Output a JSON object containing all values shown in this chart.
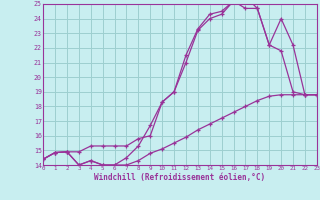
{
  "bg_color": "#c8eef0",
  "grid_color": "#9dcfcf",
  "line_color": "#993399",
  "marker": "+",
  "xlim": [
    0,
    23
  ],
  "ylim": [
    14,
    25
  ],
  "xticks": [
    0,
    1,
    2,
    3,
    4,
    5,
    6,
    7,
    8,
    9,
    10,
    11,
    12,
    13,
    14,
    15,
    16,
    17,
    18,
    19,
    20,
    21,
    22,
    23
  ],
  "yticks": [
    14,
    15,
    16,
    17,
    18,
    19,
    20,
    21,
    22,
    23,
    24,
    25
  ],
  "xlabel": "Windchill (Refroidissement éolien,°C)",
  "curve1_x": [
    0,
    1,
    2,
    3,
    4,
    5,
    6,
    7,
    8,
    9,
    10,
    11,
    12,
    13,
    14,
    15,
    16,
    17,
    18,
    19,
    20,
    21,
    22,
    23
  ],
  "curve1_y": [
    14.4,
    14.85,
    14.9,
    14.0,
    14.3,
    14.0,
    14.0,
    14.0,
    14.3,
    14.8,
    15.1,
    15.5,
    15.9,
    16.4,
    16.8,
    17.2,
    17.6,
    18.0,
    18.4,
    18.7,
    18.8,
    18.8,
    18.8,
    18.8
  ],
  "curve2_x": [
    0,
    1,
    2,
    3,
    4,
    5,
    6,
    7,
    8,
    9,
    10,
    11,
    12,
    13,
    14,
    15,
    16,
    17,
    18,
    19,
    20,
    21,
    22,
    23
  ],
  "curve2_y": [
    14.4,
    14.85,
    14.9,
    14.0,
    14.3,
    14.0,
    14.0,
    14.5,
    15.3,
    16.7,
    18.3,
    19.0,
    21.5,
    23.3,
    24.3,
    24.5,
    25.2,
    25.5,
    24.7,
    22.2,
    24.0,
    22.2,
    18.8,
    18.8
  ],
  "curve3_x": [
    0,
    1,
    2,
    3,
    4,
    5,
    6,
    7,
    8,
    9,
    10,
    11,
    12,
    13,
    14,
    15,
    16,
    17,
    18,
    19,
    20,
    21,
    22,
    23
  ],
  "curve3_y": [
    14.4,
    14.85,
    14.9,
    14.9,
    15.3,
    15.3,
    15.3,
    15.3,
    15.8,
    16.0,
    18.3,
    19.0,
    21.0,
    23.2,
    24.0,
    24.3,
    25.2,
    24.7,
    24.7,
    22.2,
    21.8,
    19.0,
    18.8,
    18.8
  ]
}
